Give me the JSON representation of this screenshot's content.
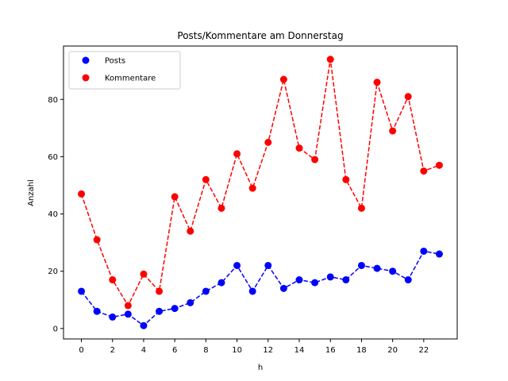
{
  "chart_data": {
    "type": "line",
    "title": "Posts/Kommentare am Donnerstag",
    "xlabel": "h",
    "ylabel": "Anzahl",
    "x": [
      0,
      1,
      2,
      3,
      4,
      5,
      6,
      7,
      8,
      9,
      10,
      11,
      12,
      13,
      14,
      15,
      16,
      17,
      18,
      19,
      20,
      21,
      22,
      23
    ],
    "xlim": [
      -1.15,
      24.15
    ],
    "ylim": [
      -3.65,
      98.65
    ],
    "xticks": [
      0,
      2,
      4,
      6,
      8,
      10,
      12,
      14,
      16,
      18,
      20,
      22
    ],
    "yticks": [
      0,
      20,
      40,
      60,
      80
    ],
    "grid": false,
    "legend_position": "top-left",
    "series": [
      {
        "name": "Posts",
        "color": "#0000ff",
        "values": [
          13,
          6,
          4,
          5,
          1,
          6,
          7,
          9,
          13,
          16,
          22,
          13,
          22,
          14,
          17,
          16,
          18,
          17,
          22,
          21,
          20,
          17,
          27,
          26
        ]
      },
      {
        "name": "Kommentare",
        "color": "#ff0000",
        "values": [
          47,
          31,
          17,
          8,
          19,
          13,
          46,
          34,
          52,
          42,
          61,
          49,
          65,
          87,
          63,
          59,
          94,
          52,
          42,
          86,
          69,
          81,
          55,
          57
        ]
      }
    ]
  }
}
